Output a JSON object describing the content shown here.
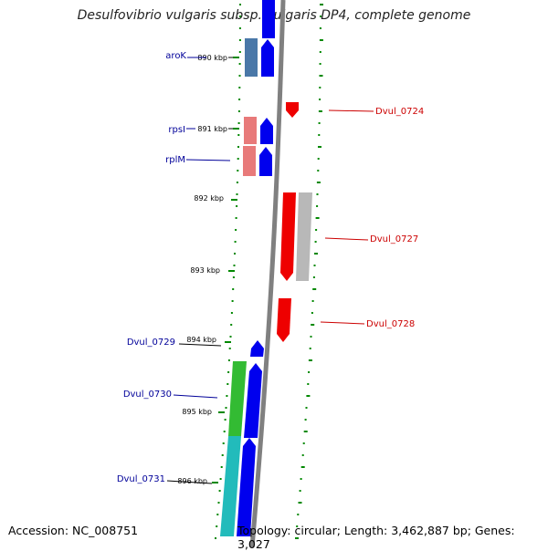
{
  "title": "Desulfovibrio vulgaris subsp. vulgaris DP4, complete genome",
  "accession": "Accession: NC_008751",
  "topology": "Topology: circular; Length: 3,462,887 bp; Genes: 3,027",
  "colors": {
    "backbone": "#808080",
    "forward_gene": "#0000ee",
    "reverse_gene": "#ee0000",
    "left_label": "#000099",
    "right_label": "#cc0000",
    "tick": "#008800",
    "aroK_feature": "#4a78a8",
    "rps_feature": "#e87a7a",
    "dvul0730_feature": "#33bb33",
    "dvul0731_feature": "#22bbbb",
    "dvul0727_feature": "#b8b8b8"
  },
  "ticks": [
    {
      "label": "890 kbp"
    },
    {
      "label": "891 kbp"
    },
    {
      "label": "892 kbp"
    },
    {
      "label": "893 kbp"
    },
    {
      "label": "894 kbp"
    },
    {
      "label": "895 kbp"
    },
    {
      "label": "896 kbp"
    }
  ],
  "left_genes": [
    {
      "label": "aroK"
    },
    {
      "label": "rpsI"
    },
    {
      "label": "rplM"
    },
    {
      "label": "Dvul_0729"
    },
    {
      "label": "Dvul_0730"
    },
    {
      "label": "Dvul_0731"
    }
  ],
  "right_genes": [
    {
      "label": "Dvul_0724"
    },
    {
      "label": "Dvul_0727"
    },
    {
      "label": "Dvul_0728"
    }
  ]
}
